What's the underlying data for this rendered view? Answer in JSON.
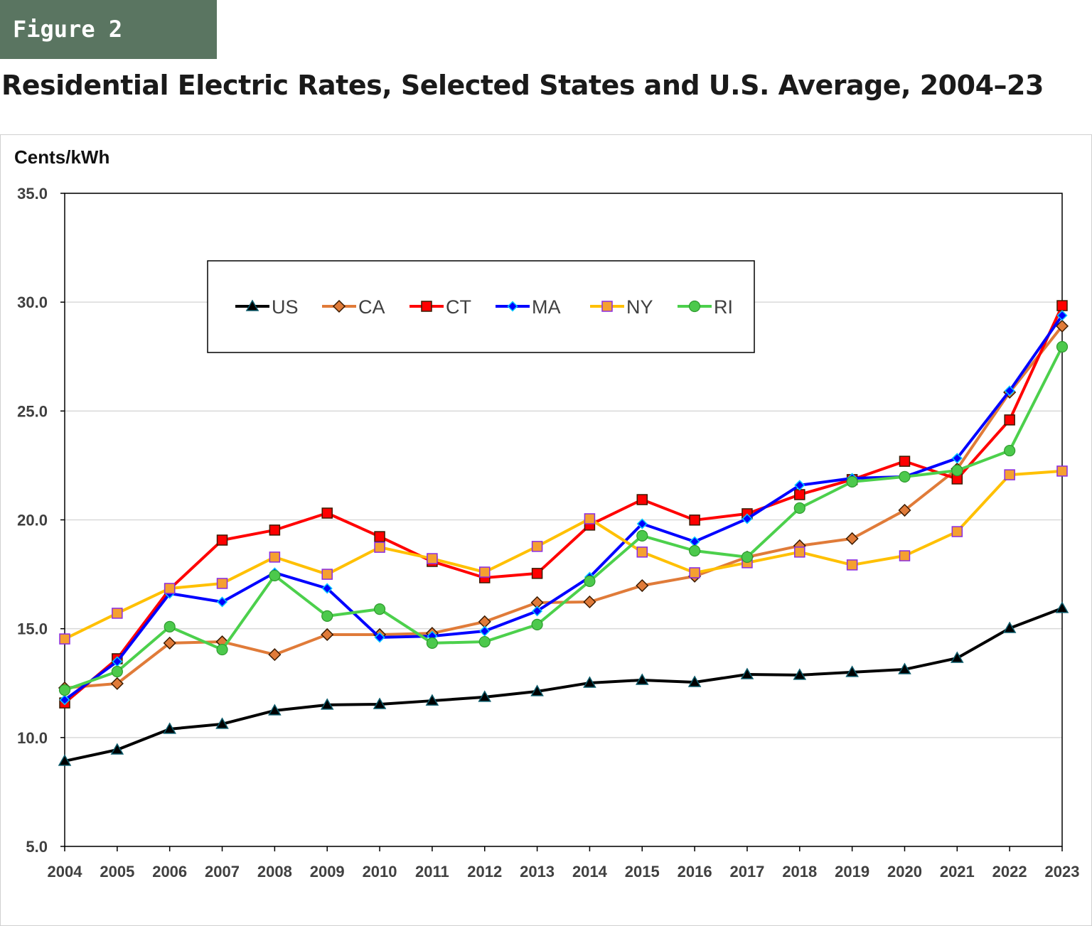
{
  "figure_label": "Figure 2",
  "chart_data": {
    "type": "line",
    "title": "Residential Electric Rates, Selected States and U.S. Average, 2004–23",
    "ylabel": "Cents/kWh",
    "xlabel": "",
    "ylim": [
      5.0,
      35.0
    ],
    "yticks": [
      "5.0",
      "10.0",
      "15.0",
      "20.0",
      "25.0",
      "30.0",
      "35.0"
    ],
    "grid": true,
    "legend_position": "top-center",
    "categories": [
      "2004",
      "2005",
      "2006",
      "2007",
      "2008",
      "2009",
      "2010",
      "2011",
      "2012",
      "2013",
      "2014",
      "2015",
      "2016",
      "2017",
      "2018",
      "2019",
      "2020",
      "2021",
      "2022",
      "2023"
    ],
    "series": [
      {
        "name": "US",
        "color": "#000000",
        "marker": "triangle",
        "marker_fill": "#0b3d4a",
        "values": [
          8.92,
          9.44,
          10.39,
          10.62,
          11.24,
          11.5,
          11.53,
          11.69,
          11.86,
          12.12,
          12.51,
          12.64,
          12.54,
          12.9,
          12.87,
          13.0,
          13.13,
          13.65,
          15.02,
          15.94
        ]
      },
      {
        "name": "CA",
        "color": "#E07B39",
        "marker": "diamond",
        "marker_fill": "#E07B39",
        "values": [
          12.28,
          12.48,
          14.34,
          14.4,
          13.81,
          14.73,
          14.73,
          14.79,
          15.32,
          16.2,
          16.23,
          16.98,
          17.41,
          18.29,
          18.81,
          19.14,
          20.44,
          22.34,
          25.86,
          28.9
        ]
      },
      {
        "name": "CT",
        "color": "#FF0000",
        "marker": "square",
        "marker_fill": "#FF0000",
        "values": [
          11.59,
          13.62,
          16.82,
          19.07,
          19.53,
          20.31,
          19.23,
          18.09,
          17.34,
          17.54,
          19.76,
          20.93,
          19.99,
          20.28,
          21.16,
          21.85,
          22.69,
          21.88,
          24.59,
          29.84
        ]
      },
      {
        "name": "MA",
        "color": "#0000FF",
        "marker": "diamond",
        "marker_fill": "#0000FF",
        "values": [
          11.73,
          13.49,
          16.62,
          16.23,
          17.57,
          16.85,
          14.6,
          14.66,
          14.89,
          15.81,
          17.37,
          19.82,
          19.0,
          20.05,
          21.59,
          21.91,
          21.98,
          22.83,
          25.93,
          29.39
        ]
      },
      {
        "name": "NY",
        "color": "#FFC000",
        "marker": "square",
        "marker_fill": "#F5A030",
        "values": [
          14.53,
          15.71,
          16.85,
          17.08,
          18.29,
          17.5,
          18.74,
          18.22,
          17.6,
          18.78,
          20.05,
          18.52,
          17.57,
          18.03,
          18.52,
          17.93,
          18.35,
          19.46,
          22.07,
          22.24
        ]
      },
      {
        "name": "RI",
        "color": "#4CD04C",
        "marker": "circle",
        "marker_fill": "#4CC94C",
        "values": [
          12.18,
          13.03,
          15.09,
          14.04,
          17.44,
          15.58,
          15.9,
          14.34,
          14.4,
          15.19,
          17.18,
          19.27,
          18.58,
          18.29,
          20.54,
          21.75,
          21.98,
          22.27,
          23.18,
          27.95
        ]
      }
    ]
  }
}
